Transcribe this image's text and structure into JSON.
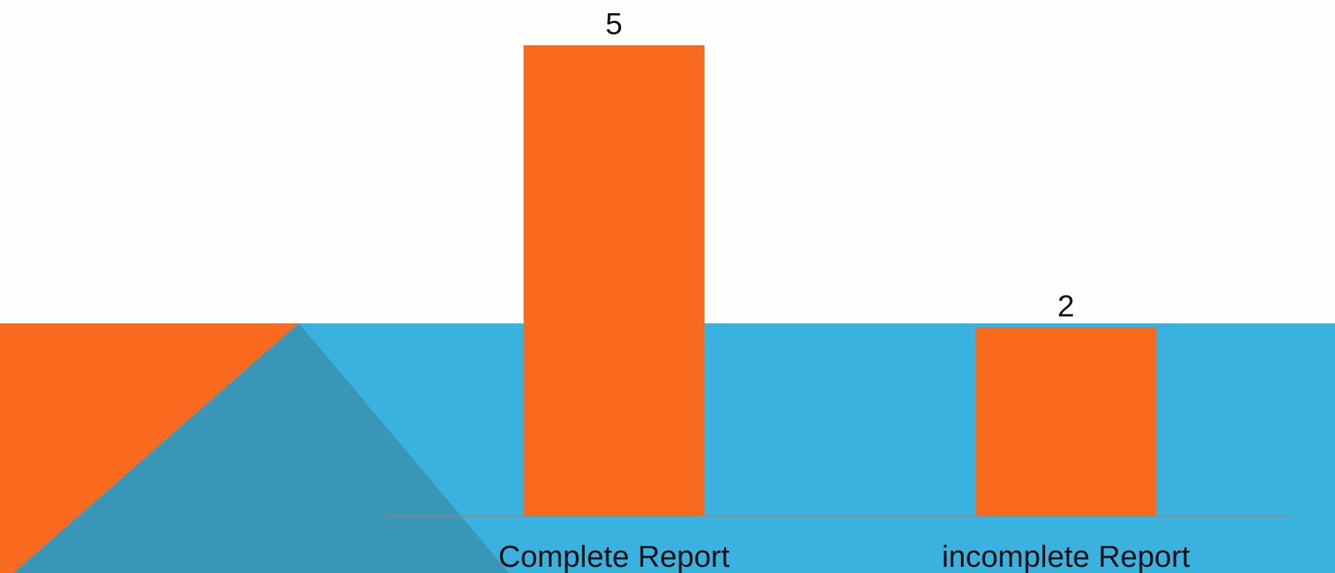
{
  "colors": {
    "background": "#FEFEFE",
    "band": "#3AB2E0",
    "orange_shape": "#F96A1E",
    "teal_shape": "#3A96B6",
    "bar": "#F96A1E",
    "axis_line": "#8A8A8A",
    "text": "#111111"
  },
  "chart_data": {
    "type": "bar",
    "categories": [
      "Complete Report",
      "incomplete Report"
    ],
    "values": [
      5,
      2
    ],
    "data_labels": [
      "5",
      "2"
    ],
    "title": "",
    "xlabel": "",
    "ylabel": "",
    "ylim": [
      0,
      5
    ],
    "grid": false,
    "legend": "none"
  }
}
